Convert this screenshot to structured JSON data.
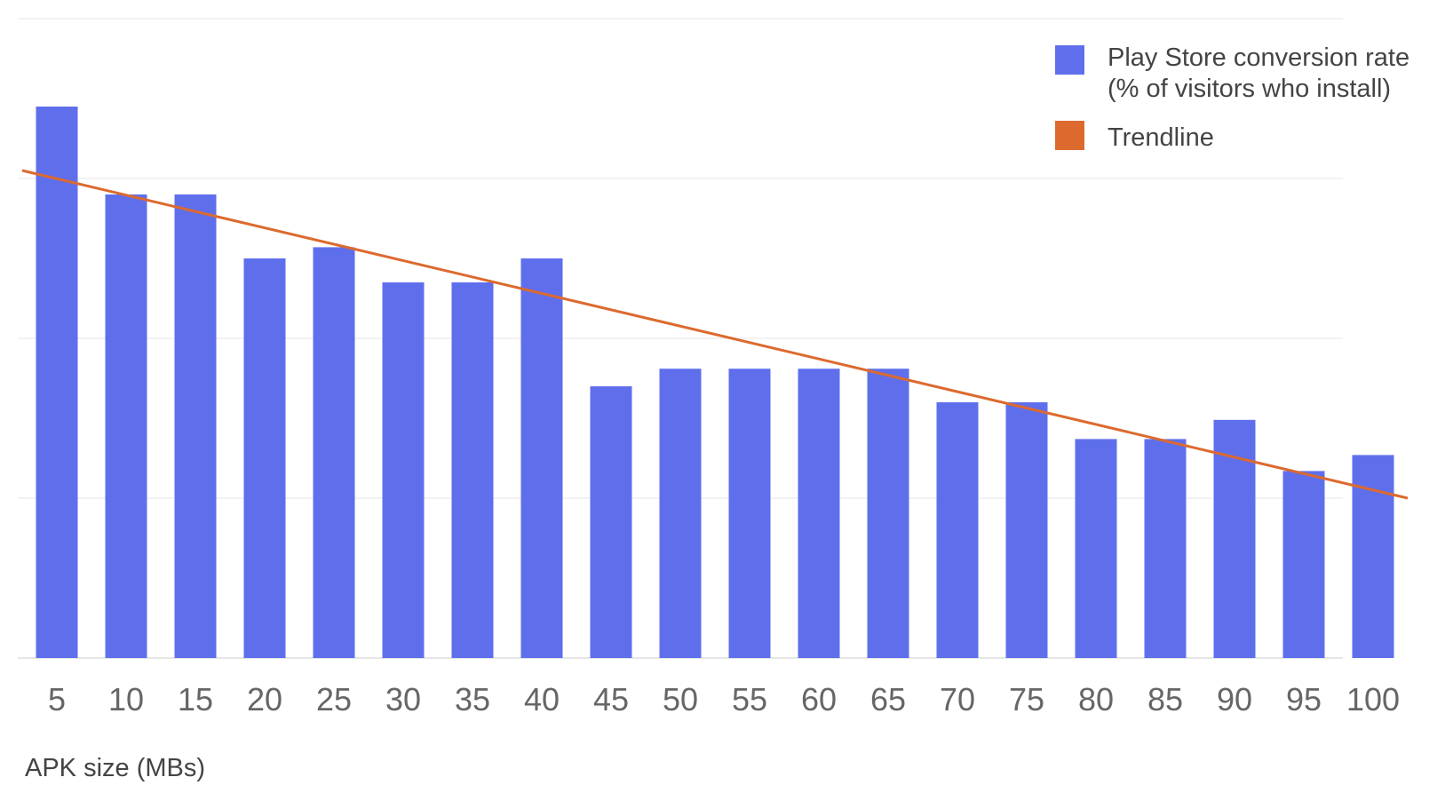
{
  "chart_data": {
    "type": "bar",
    "title": "",
    "xlabel": "APK size (MBs)",
    "ylabel": "",
    "categories": [
      "5",
      "10",
      "15",
      "20",
      "25",
      "30",
      "35",
      "40",
      "45",
      "50",
      "55",
      "60",
      "65",
      "70",
      "75",
      "80",
      "85",
      "90",
      "95",
      "100"
    ],
    "series": [
      {
        "name_lines": [
          "Play Store conversion rate",
          "(% of visitors who install)"
        ],
        "color": "#5f6fec",
        "values": [
          3.45,
          2.9,
          2.9,
          2.5,
          2.57,
          2.35,
          2.35,
          2.5,
          1.7,
          1.81,
          1.81,
          1.81,
          1.81,
          1.6,
          1.6,
          1.37,
          1.37,
          1.49,
          1.17,
          1.27
        ]
      }
    ],
    "trendline": {
      "name": "Trendline",
      "color": "#dc6a2f",
      "from": {
        "x": 2.5,
        "y": 3.05
      },
      "to": {
        "x": 102.5,
        "y": 1.0
      }
    },
    "ylim": [
      0,
      4
    ],
    "y_gridlines": [
      1,
      2,
      3,
      4
    ],
    "y_tick_labels_shown": false,
    "grid": true,
    "legend_position": "top-right"
  }
}
